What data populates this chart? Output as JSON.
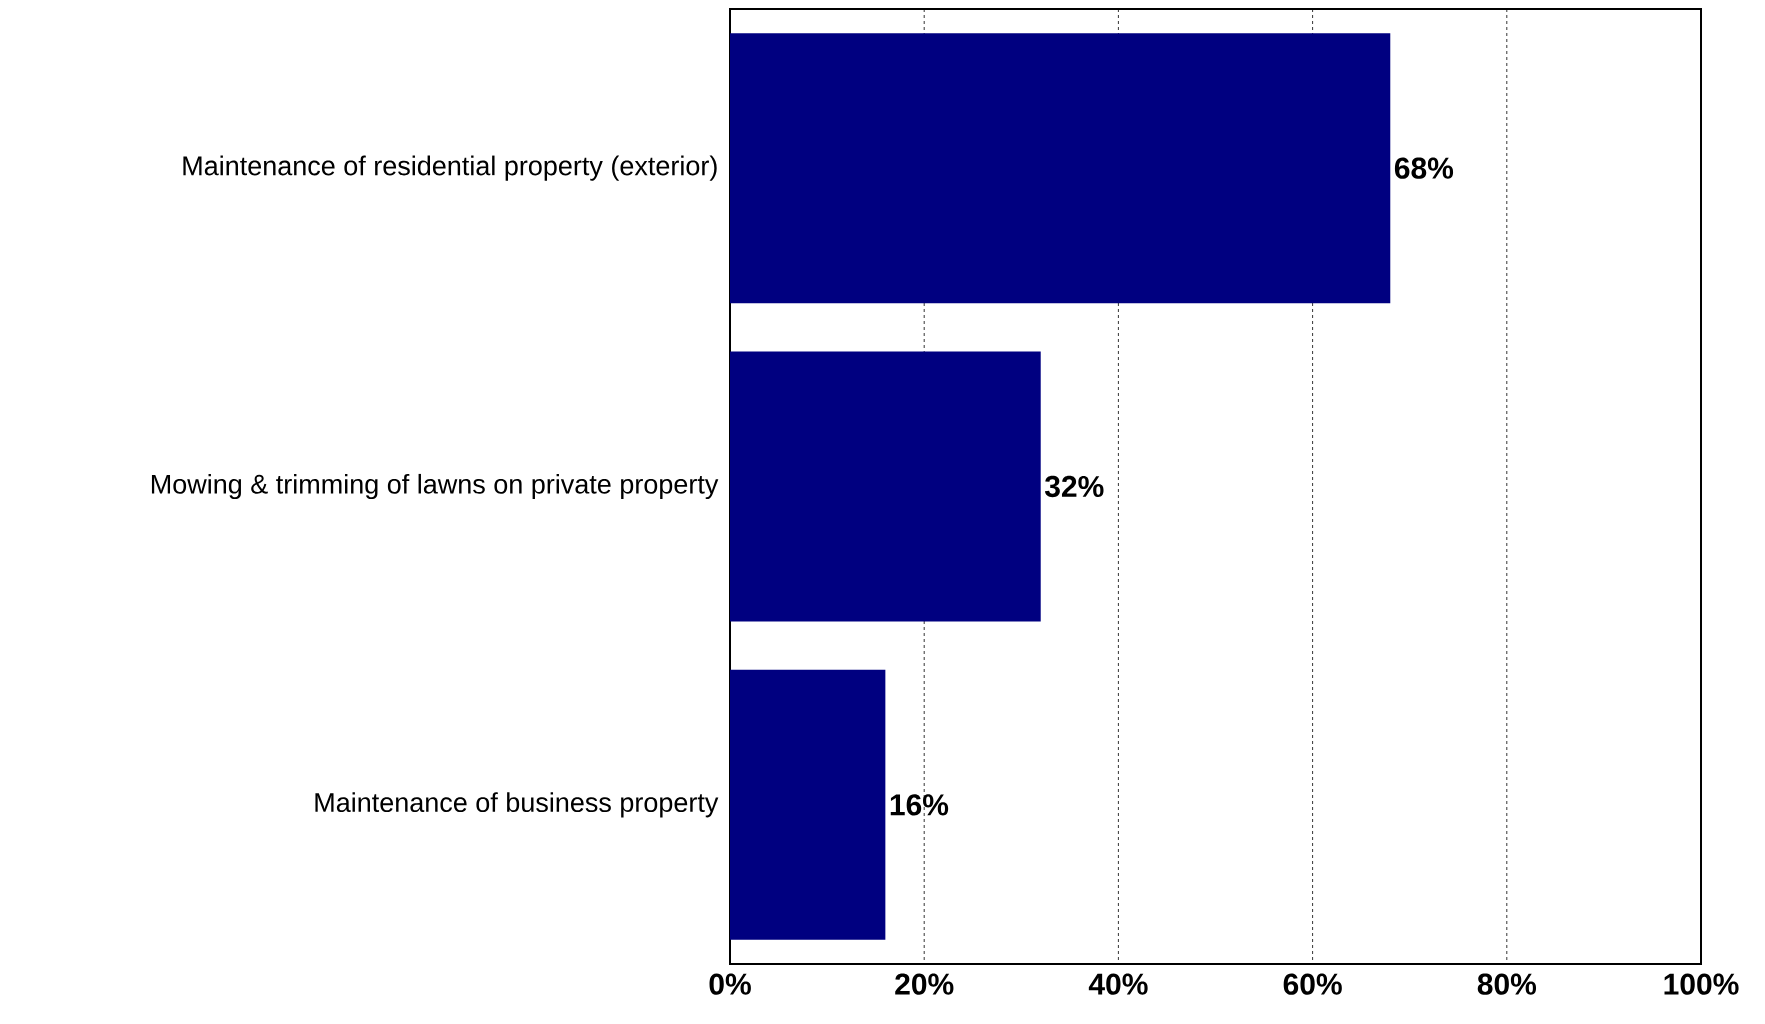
{
  "chart_data": {
    "type": "bar",
    "orientation": "horizontal",
    "categories": [
      "Maintenance of residential property (exterior)",
      "Mowing & trimming of lawns on private property",
      "Maintenance of business property"
    ],
    "values": [
      68,
      32,
      16
    ],
    "color": "#000080",
    "value_labels": [
      "68%",
      "32%",
      "16%"
    ],
    "xlim": [
      0,
      100
    ],
    "xticks": [
      {
        "value": 0,
        "label": "0%"
      },
      {
        "value": 20,
        "label": "20%"
      },
      {
        "value": 40,
        "label": "40%"
      },
      {
        "value": 60,
        "label": "60%"
      },
      {
        "value": 80,
        "label": "80%"
      },
      {
        "value": 100,
        "label": "100%"
      }
    ],
    "grid": "x",
    "line_style": "dashed"
  }
}
